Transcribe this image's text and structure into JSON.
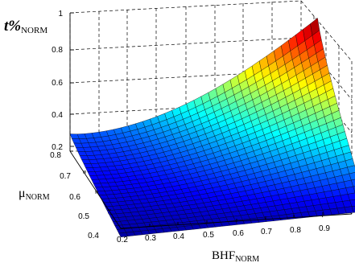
{
  "chart_data": {
    "type": "surface3d",
    "zlabel": {
      "main": "t%",
      "sub": "NORM"
    },
    "ylabel": {
      "main": "μ",
      "sub": "NORM"
    },
    "xlabel": {
      "main": "BHF",
      "sub": "NORM"
    },
    "xlim": [
      0.2,
      0.95
    ],
    "ylim": [
      0.4,
      0.8
    ],
    "zlim": [
      0.2,
      1.0
    ],
    "x_ticks": [
      "0.2",
      "0.3",
      "0.4",
      "0.5",
      "0.6",
      "0.7",
      "0.8",
      "0.9"
    ],
    "y_ticks": [
      "0.4",
      "0.5",
      "0.6",
      "0.7",
      "0.8"
    ],
    "z_ticks": [
      "0.2",
      "0.4",
      "0.6",
      "0.8",
      "1"
    ],
    "grid": true,
    "colormap": "jet",
    "surface_corners": [
      {
        "x": 0.2,
        "y": 0.8,
        "z": 0.3
      },
      {
        "x": 0.95,
        "y": 0.8,
        "z": 1.0
      },
      {
        "x": 0.95,
        "y": 0.4,
        "z": 0.18
      },
      {
        "x": 0.2,
        "y": 0.4,
        "z": 0.15
      }
    ]
  }
}
